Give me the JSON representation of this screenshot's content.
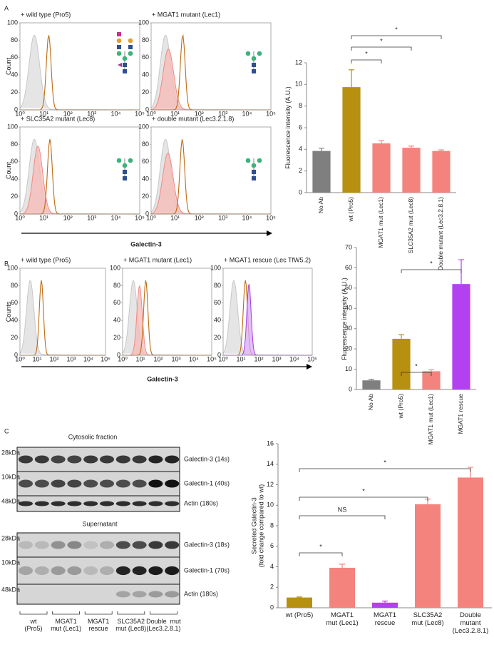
{
  "panel_labels": [
    "A",
    "B",
    "C"
  ],
  "flow": {
    "ylim": [
      0,
      100
    ],
    "yticks": [
      0,
      20,
      40,
      60,
      80,
      100
    ],
    "xticks": [
      "10⁰",
      "10¹",
      "10²",
      "10³",
      "10⁴",
      "10⁵"
    ],
    "xlabel": "Galectin-3"
  },
  "flow_a": {
    "ylabel": "Count",
    "titles": [
      "+ wild type (Pro5)",
      "+ MGAT1 mutant (Lec1)",
      "+ SLC35A2 mutant (Lec8)",
      "+ double mutant (Lec3.2.1.8)"
    ]
  },
  "flow_b": {
    "ylabel": "Counts",
    "titles": [
      "+ wild type (Pro5)",
      "+ MGAT1 mutant (Lec1)",
      "+ MGAT1 rescue (Lec TfW5.2)"
    ]
  },
  "chart_data": [
    {
      "type": "bar",
      "ylabel": "Fluorescence intensity (A.U.)",
      "categories": [
        "No Ab",
        "wt (Pro5)",
        "MGAT1 mut (Lec1)",
        "SLC35A2 mut (Lec8)",
        "Double mutant (Lec3.2.8.1)"
      ],
      "values": [
        3.85,
        9.75,
        4.55,
        4.15,
        3.85
      ],
      "errors": [
        0.25,
        1.6,
        0.25,
        0.15,
        0.1
      ],
      "colors": [
        "#7f7f7f",
        "#b8900f",
        "#f4837d",
        "#f4837d",
        "#f4837d"
      ],
      "ylim": [
        0,
        12
      ],
      "yticks": [
        0,
        2,
        4,
        6,
        8,
        10,
        12
      ],
      "annotations": [
        "*",
        "*",
        "*"
      ]
    },
    {
      "type": "bar",
      "ylabel": "Fluorescence intensity (A.U.)",
      "categories": [
        "No Ab",
        "wt (Pro5)",
        "MGAT1 mut (Lec1)",
        "MGAT1 rescue"
      ],
      "values": [
        4.5,
        25,
        9,
        52
      ],
      "errors": [
        0.5,
        2,
        0.7,
        12
      ],
      "colors": [
        "#7f7f7f",
        "#b8900f",
        "#f4837d",
        "#b341f0"
      ],
      "ylim": [
        0,
        70
      ],
      "yticks": [
        0,
        10,
        20,
        30,
        40,
        50,
        60,
        70
      ],
      "annotations": [
        "*",
        "*"
      ]
    },
    {
      "type": "bar",
      "ylabel": "Secreted Galectin-3\n(fold change compared to wt)",
      "categories": [
        "wt (Pro5)",
        "MGAT1\nmut (Lec1)",
        "MGAT1\nrescue",
        "SLC35A2\nmut (Lec8)",
        "Double\nmutant\n(Lec3.2.8.1)"
      ],
      "values": [
        1.0,
        3.9,
        0.5,
        10.1,
        12.7
      ],
      "errors": [
        0.05,
        0.35,
        0.15,
        0.5,
        1.0
      ],
      "colors": [
        "#b8900f",
        "#f4837d",
        "#b341f0",
        "#f4837d",
        "#f4837d"
      ],
      "ylim": [
        0,
        16
      ],
      "yticks": [
        0,
        2,
        4,
        6,
        8,
        10,
        12,
        14,
        16
      ],
      "annotations": [
        "*",
        "NS",
        "*",
        "*"
      ]
    }
  ],
  "blot": {
    "headings": [
      "Cytosolic fraction",
      "Supernatant"
    ],
    "bands": [
      "Galectin-3 (14s)",
      "Galectin-1 (40s)",
      "Actin (180s)",
      "Galectin-3 (18s)",
      "Galectin-1 (70s)",
      "Actin (180s)"
    ],
    "markers": [
      "28kDa",
      "10kDa",
      "48kDa"
    ],
    "lanes": [
      "wt\n(Pro5)",
      "MGAT1\nmut (Lec1)",
      "MGAT1\nrescue",
      "SLC35A2\nmut (Lec8)",
      "Double  mut\n(Lec3.2.8.1)"
    ]
  }
}
